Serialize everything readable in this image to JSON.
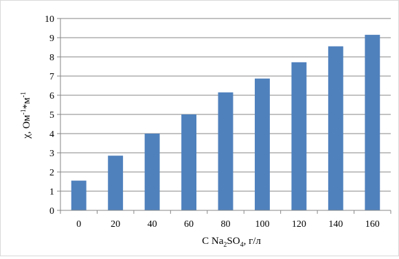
{
  "chart_data": {
    "type": "bar",
    "title": "",
    "categories": [
      "0",
      "20",
      "40",
      "60",
      "80",
      "100",
      "120",
      "140",
      "160"
    ],
    "values": [
      1.55,
      2.85,
      4.0,
      5.0,
      6.15,
      6.87,
      7.72,
      8.55,
      9.15
    ],
    "xlabel": {
      "prefix": "C Na",
      "sub1": "2",
      "mid": "SO",
      "sub2": "4",
      "suffix": ",  г/л"
    },
    "ylabel": {
      "base": "χ, Ом",
      "sup1": "-1",
      "mid": "*м",
      "sup2": "-1"
    },
    "ylim": [
      0,
      10
    ],
    "yticks": [
      "0",
      "1",
      "2",
      "3",
      "4",
      "5",
      "6",
      "7",
      "8",
      "9",
      "10"
    ],
    "grid": true,
    "legend": "none",
    "bar_color": "#4f81bd",
    "grid_color": "#868686"
  }
}
